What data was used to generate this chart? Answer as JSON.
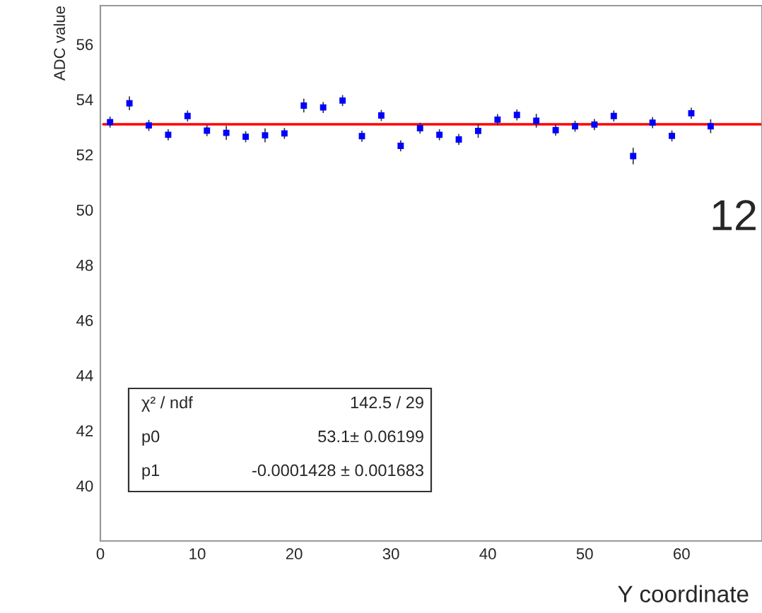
{
  "chart_data": {
    "type": "scatter",
    "ylabel": "ADC value",
    "xlim": [
      0,
      68.3
    ],
    "ylim": [
      38,
      57.4
    ],
    "xticks": [
      0,
      10,
      20,
      30,
      40,
      50,
      60
    ],
    "yticks": [
      40,
      42,
      44,
      46,
      48,
      50,
      52,
      54,
      56
    ],
    "grid": false,
    "legend": false,
    "series": [
      {
        "color": "#0000ff",
        "marker": "square",
        "x": [
          1,
          3,
          5,
          7,
          9,
          11,
          13,
          15,
          17,
          19,
          21,
          23,
          25,
          27,
          29,
          31,
          33,
          35,
          37,
          39,
          41,
          43,
          45,
          47,
          49,
          51,
          53,
          55,
          57,
          59,
          61,
          63
        ],
        "values": [
          53.18,
          53.86,
          53.06,
          52.72,
          53.4,
          52.87,
          52.79,
          52.65,
          52.7,
          52.77,
          53.78,
          53.71,
          53.96,
          52.67,
          53.42,
          52.32,
          52.96,
          52.72,
          52.55,
          52.86,
          53.27,
          53.44,
          53.23,
          52.89,
          53.03,
          53.09,
          53.4,
          51.95,
          53.16,
          52.68,
          53.5,
          53.03
        ],
        "errors": [
          0.2,
          0.25,
          0.2,
          0.2,
          0.2,
          0.2,
          0.25,
          0.2,
          0.25,
          0.2,
          0.25,
          0.2,
          0.2,
          0.2,
          0.2,
          0.2,
          0.2,
          0.2,
          0.2,
          0.25,
          0.2,
          0.2,
          0.25,
          0.2,
          0.2,
          0.2,
          0.2,
          0.3,
          0.2,
          0.2,
          0.2,
          0.25
        ]
      },
      {
        "type": "line",
        "color": "#ff0000",
        "x": [
          0.3,
          68.3
        ],
        "values": [
          53.1,
          53.1
        ]
      }
    ],
    "annotations": [
      "χ² / ndf",
      "142.5 / 29",
      "p0",
      "53.1± 0.06199",
      "p1",
      "-0.0001428 ± 0.001683",
      "12",
      "Y coordinate"
    ]
  }
}
